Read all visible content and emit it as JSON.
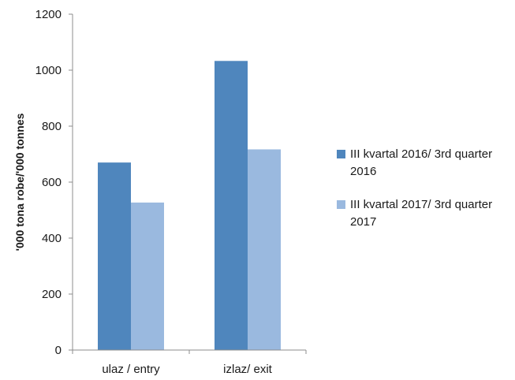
{
  "chart_data": {
    "type": "bar",
    "title": "",
    "xlabel": "",
    "ylabel": "'000 tona robe/'000 tonnes",
    "ylim": [
      0,
      1200
    ],
    "yticks": [
      0,
      200,
      400,
      600,
      800,
      1000,
      1200
    ],
    "grid": false,
    "legend_position": "right",
    "categories": [
      "ulaz / entry",
      "izlaz/ exit"
    ],
    "series": [
      {
        "name_lines": [
          "III kvartal 2016/ 3rd quarter",
          "2016"
        ],
        "color": "#4f86bd",
        "values": [
          670,
          1033
        ]
      },
      {
        "name_lines": [
          "III kvartal 2017/ 3rd quarter",
          "2017"
        ],
        "color": "#9ab9df",
        "values": [
          527,
          717
        ]
      }
    ]
  }
}
